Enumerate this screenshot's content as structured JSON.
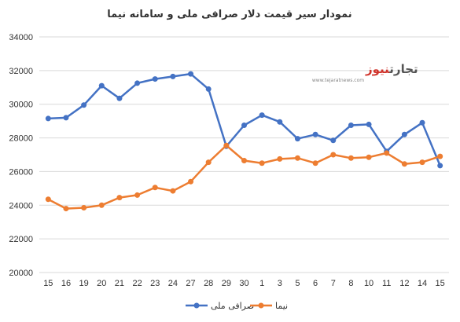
{
  "chart_data": {
    "type": "line",
    "title": "نمودار سیر قیمت دلار صرافی ملی و سامانه نیما",
    "categories": [
      "15",
      "16",
      "19",
      "20",
      "21",
      "22",
      "23",
      "24",
      "27",
      "28",
      "29",
      "30",
      "1",
      "3",
      "5",
      "6",
      "7",
      "8",
      "10",
      "11",
      "12",
      "14",
      "15"
    ],
    "series": [
      {
        "name": "صرافی ملی",
        "color": "#4472C4",
        "values": [
          29150,
          29200,
          29950,
          31100,
          30350,
          31250,
          31500,
          31650,
          31800,
          30900,
          27500,
          28750,
          29350,
          28950,
          27950,
          28200,
          27850,
          28750,
          28800,
          27200,
          28200,
          28900,
          26350
        ]
      },
      {
        "name": "نیما",
        "color": "#ED7D31",
        "values": [
          24350,
          23800,
          23850,
          24000,
          24450,
          24600,
          25050,
          24850,
          25400,
          26550,
          27550,
          26650,
          26500,
          26750,
          26800,
          26500,
          27000,
          26800,
          26850,
          27100,
          26450,
          26550,
          26900
        ]
      }
    ],
    "ylim": [
      20000,
      34000
    ],
    "yticks": [
      20000,
      22000,
      24000,
      26000,
      28000,
      30000,
      32000,
      34000
    ],
    "grid": true,
    "legend": "bottom"
  },
  "logo": {
    "brand_part1": "تجارت",
    "brand_part2": "نیوز",
    "url": "www.tejaratnews.com"
  }
}
